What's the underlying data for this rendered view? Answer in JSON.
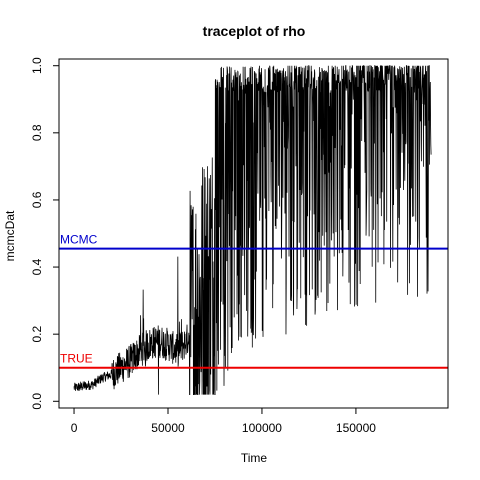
{
  "chart_data": {
    "type": "line",
    "title": "traceplot of rho",
    "xlabel": "Time",
    "ylabel": "mcmcDat",
    "xlim": [
      -8000,
      199000
    ],
    "ylim": [
      -0.02,
      1.02
    ],
    "x_ticks": [
      0,
      50000,
      100000,
      150000
    ],
    "x_tick_labels": [
      "0",
      "50000",
      "100000",
      "150000"
    ],
    "y_ticks": [
      0.0,
      0.2,
      0.4,
      0.6,
      0.8,
      1.0
    ],
    "y_tick_labels": [
      "0.0",
      "0.2",
      "0.4",
      "0.6",
      "0.8",
      "1.0"
    ],
    "grid": false,
    "series": [
      {
        "color": "#000000",
        "x_range": [
          0,
          190000
        ],
        "values": [
          [
            0,
            0.04
          ],
          [
            5000,
            0.045
          ],
          [
            10000,
            0.05
          ],
          [
            15000,
            0.07
          ],
          [
            20000,
            0.08
          ],
          [
            25000,
            0.1
          ],
          [
            30000,
            0.12
          ],
          [
            35000,
            0.15
          ],
          [
            40000,
            0.17
          ],
          [
            45000,
            0.18
          ],
          [
            50000,
            0.17
          ],
          [
            55000,
            0.15
          ],
          [
            60000,
            0.18
          ],
          [
            65000,
            0.25
          ],
          [
            70000,
            0.33
          ],
          [
            75000,
            0.4
          ],
          [
            80000,
            0.48
          ],
          [
            90000,
            0.55
          ],
          [
            100000,
            0.62
          ],
          [
            120000,
            0.66
          ],
          [
            140000,
            0.72
          ],
          [
            160000,
            0.74
          ],
          [
            190000,
            0.76
          ]
        ]
      }
    ],
    "reference_lines": [
      {
        "label": "MCMC",
        "y": 0.455,
        "color": "#0000cc"
      },
      {
        "label": "TRUE",
        "y": 0.1,
        "color": "#ee0000"
      }
    ]
  }
}
